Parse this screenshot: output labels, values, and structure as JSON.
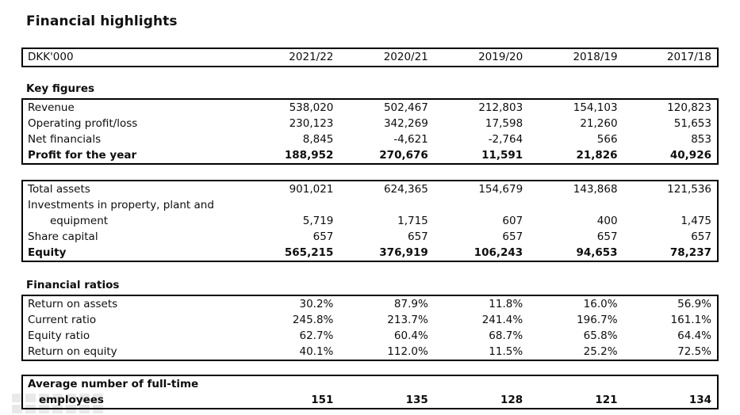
{
  "page": {
    "title": "Financial highlights"
  },
  "colors": {
    "text": "#0d0d0d",
    "border": "#000000",
    "background": "#ffffff"
  },
  "table": {
    "unit_label": "DKK'000",
    "years": [
      "2021/22",
      "2020/21",
      "2019/20",
      "2018/19",
      "2017/18"
    ],
    "sections": [
      {
        "heading": "Key figures",
        "rows": [
          {
            "label": "Revenue",
            "bold": false,
            "values": [
              "538,020",
              "502,467",
              "212,803",
              "154,103",
              "120,823"
            ]
          },
          {
            "label": "Operating profit/loss",
            "bold": false,
            "values": [
              "230,123",
              "342,269",
              "17,598",
              "21,260",
              "51,653"
            ]
          },
          {
            "label": "Net financials",
            "bold": false,
            "values": [
              "8,845",
              "-4,621",
              "-2,764",
              "566",
              "853"
            ]
          },
          {
            "label": "Profit for the year",
            "bold": true,
            "values": [
              "188,952",
              "270,676",
              "11,591",
              "21,826",
              "40,926"
            ]
          }
        ]
      },
      {
        "heading": "",
        "rows": [
          {
            "label": "Total assets",
            "bold": false,
            "values": [
              "901,021",
              "624,365",
              "154,679",
              "143,868",
              "121,536"
            ]
          },
          {
            "label": "Investments in property, plant and",
            "label_line2": "equipment",
            "indent2": 28,
            "bold": false,
            "values": [
              "5,719",
              "1,715",
              "607",
              "400",
              "1,475"
            ]
          },
          {
            "label": "Share capital",
            "bold": false,
            "values": [
              "657",
              "657",
              "657",
              "657",
              "657"
            ]
          },
          {
            "label": "Equity",
            "bold": true,
            "values": [
              "565,215",
              "376,919",
              "106,243",
              "94,653",
              "78,237"
            ]
          }
        ]
      },
      {
        "heading": "Financial ratios",
        "rows": [
          {
            "label": "Return on assets",
            "bold": false,
            "values": [
              "30.2%",
              "87.9%",
              "11.8%",
              "16.0%",
              "56.9%"
            ]
          },
          {
            "label": "Current ratio",
            "bold": false,
            "values": [
              "245.8%",
              "213.7%",
              "241.4%",
              "196.7%",
              "161.1%"
            ]
          },
          {
            "label": "Equity ratio",
            "bold": false,
            "values": [
              "62.7%",
              "60.4%",
              "68.7%",
              "65.8%",
              "64.4%"
            ]
          },
          {
            "label": "Return on equity",
            "bold": false,
            "values": [
              "40.1%",
              "112.0%",
              "11.5%",
              "25.2%",
              "72.5%"
            ]
          }
        ]
      },
      {
        "heading": "",
        "rows": [
          {
            "label": "Average number of full-time",
            "label_line2": "employees",
            "indent2": 14,
            "bold": true,
            "values": [
              "151",
              "135",
              "128",
              "121",
              "134"
            ]
          }
        ]
      }
    ]
  }
}
